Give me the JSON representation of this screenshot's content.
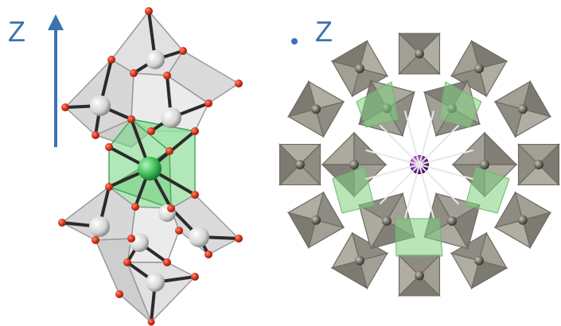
{
  "left_panel": {
    "axis_label": "Z",
    "axis_arrow_color": "#3a73b0",
    "center_atom_color": "#3fc25a",
    "center_polyhedron_color": "#7fd88a",
    "oxygen_color": "#d9351c",
    "metal_atom_color": "#f2f2f2",
    "polyhedron_color": "#cfcfcf"
  },
  "right_panel": {
    "axis_label": "Z",
    "axis_symbol_color": "#3a73b0",
    "center_atom_color": "#7a2aa0",
    "polyhedron_color": "#9f9b90",
    "highlight_color": "#7fcf7f"
  }
}
